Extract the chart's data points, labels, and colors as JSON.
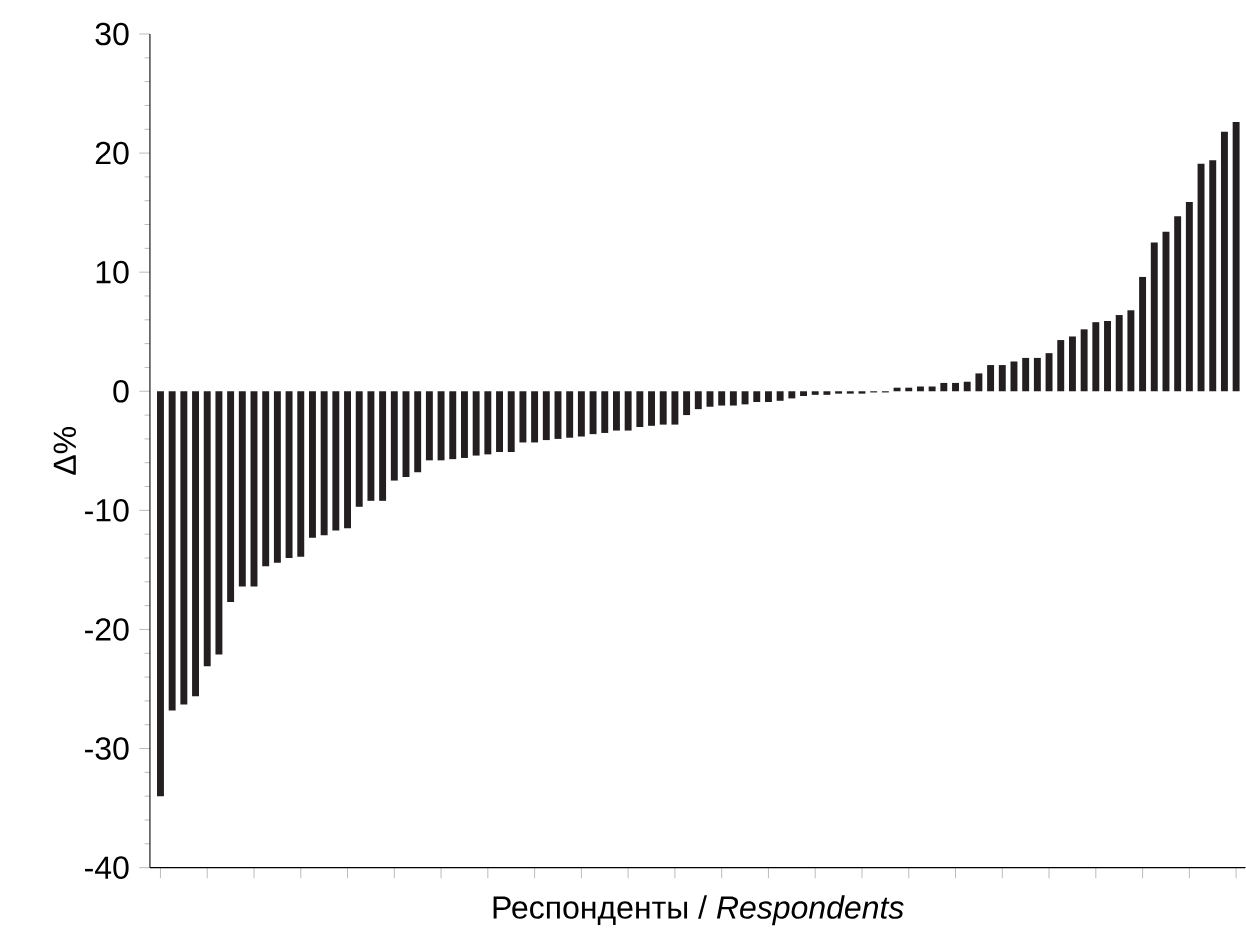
{
  "chart_data": {
    "type": "bar",
    "xlabel": "Респонденты / *Respondents*",
    "ylabel": "Δ%",
    "categories": [
      null,
      null,
      null,
      null,
      null,
      null,
      null,
      null,
      null,
      null,
      null,
      null,
      null,
      null,
      null,
      null,
      null,
      null,
      null,
      null,
      null,
      null,
      null,
      null,
      null,
      null,
      null,
      null,
      null,
      null,
      null,
      null,
      null,
      null,
      null,
      null,
      null,
      null,
      null,
      null,
      null,
      null,
      null,
      null,
      null,
      null,
      null,
      null,
      null,
      null,
      null,
      null,
      null,
      null,
      null,
      null,
      null,
      null,
      null,
      null,
      null,
      null,
      null,
      null,
      null,
      null,
      null,
      null,
      null,
      null,
      null,
      null,
      null,
      null,
      null,
      null,
      null,
      null,
      null,
      null,
      null,
      null,
      null,
      null,
      null,
      null,
      null,
      null,
      null,
      null,
      null,
      null,
      null
    ],
    "values": [
      -34,
      -26.8,
      -26.3,
      -25.6,
      -23.1,
      -22.1,
      -17.7,
      -16.4,
      -16.4,
      -14.7,
      -14.4,
      -14.0,
      -13.9,
      -12.3,
      -12.1,
      -11.7,
      -11.5,
      -9.7,
      -9.2,
      -9.2,
      -7.5,
      -7.2,
      -6.8,
      -5.8,
      -5.8,
      -5.7,
      -5.6,
      -5.4,
      -5.3,
      -5.1,
      -5.1,
      -4.3,
      -4.3,
      -4.1,
      -4.0,
      -3.9,
      -3.8,
      -3.6,
      -3.5,
      -3.3,
      -3.3,
      -3.0,
      -2.9,
      -2.8,
      -2.8,
      -2.0,
      -1.5,
      -1.3,
      -1.2,
      -1.2,
      -1.1,
      -0.9,
      -0.9,
      -0.8,
      -0.6,
      -0.4,
      -0.3,
      -0.3,
      -0.2,
      -0.2,
      -0.2,
      -0.1,
      -0.1,
      0.3,
      0.3,
      0.4,
      0.4,
      0.7,
      0.7,
      0.8,
      1.5,
      2.2,
      2.2,
      2.5,
      2.8,
      2.8,
      3.2,
      4.3,
      4.6,
      5.2,
      5.8,
      5.9,
      6.4,
      6.8,
      9.6,
      12.5,
      13.4,
      14.7,
      15.9,
      19.1,
      19.4,
      21.8,
      22.6
    ],
    "color": "#231f20",
    "ylim": [
      -40,
      30
    ],
    "yticks": [
      -40,
      -30,
      -20,
      -10,
      0,
      10,
      20,
      30
    ]
  }
}
